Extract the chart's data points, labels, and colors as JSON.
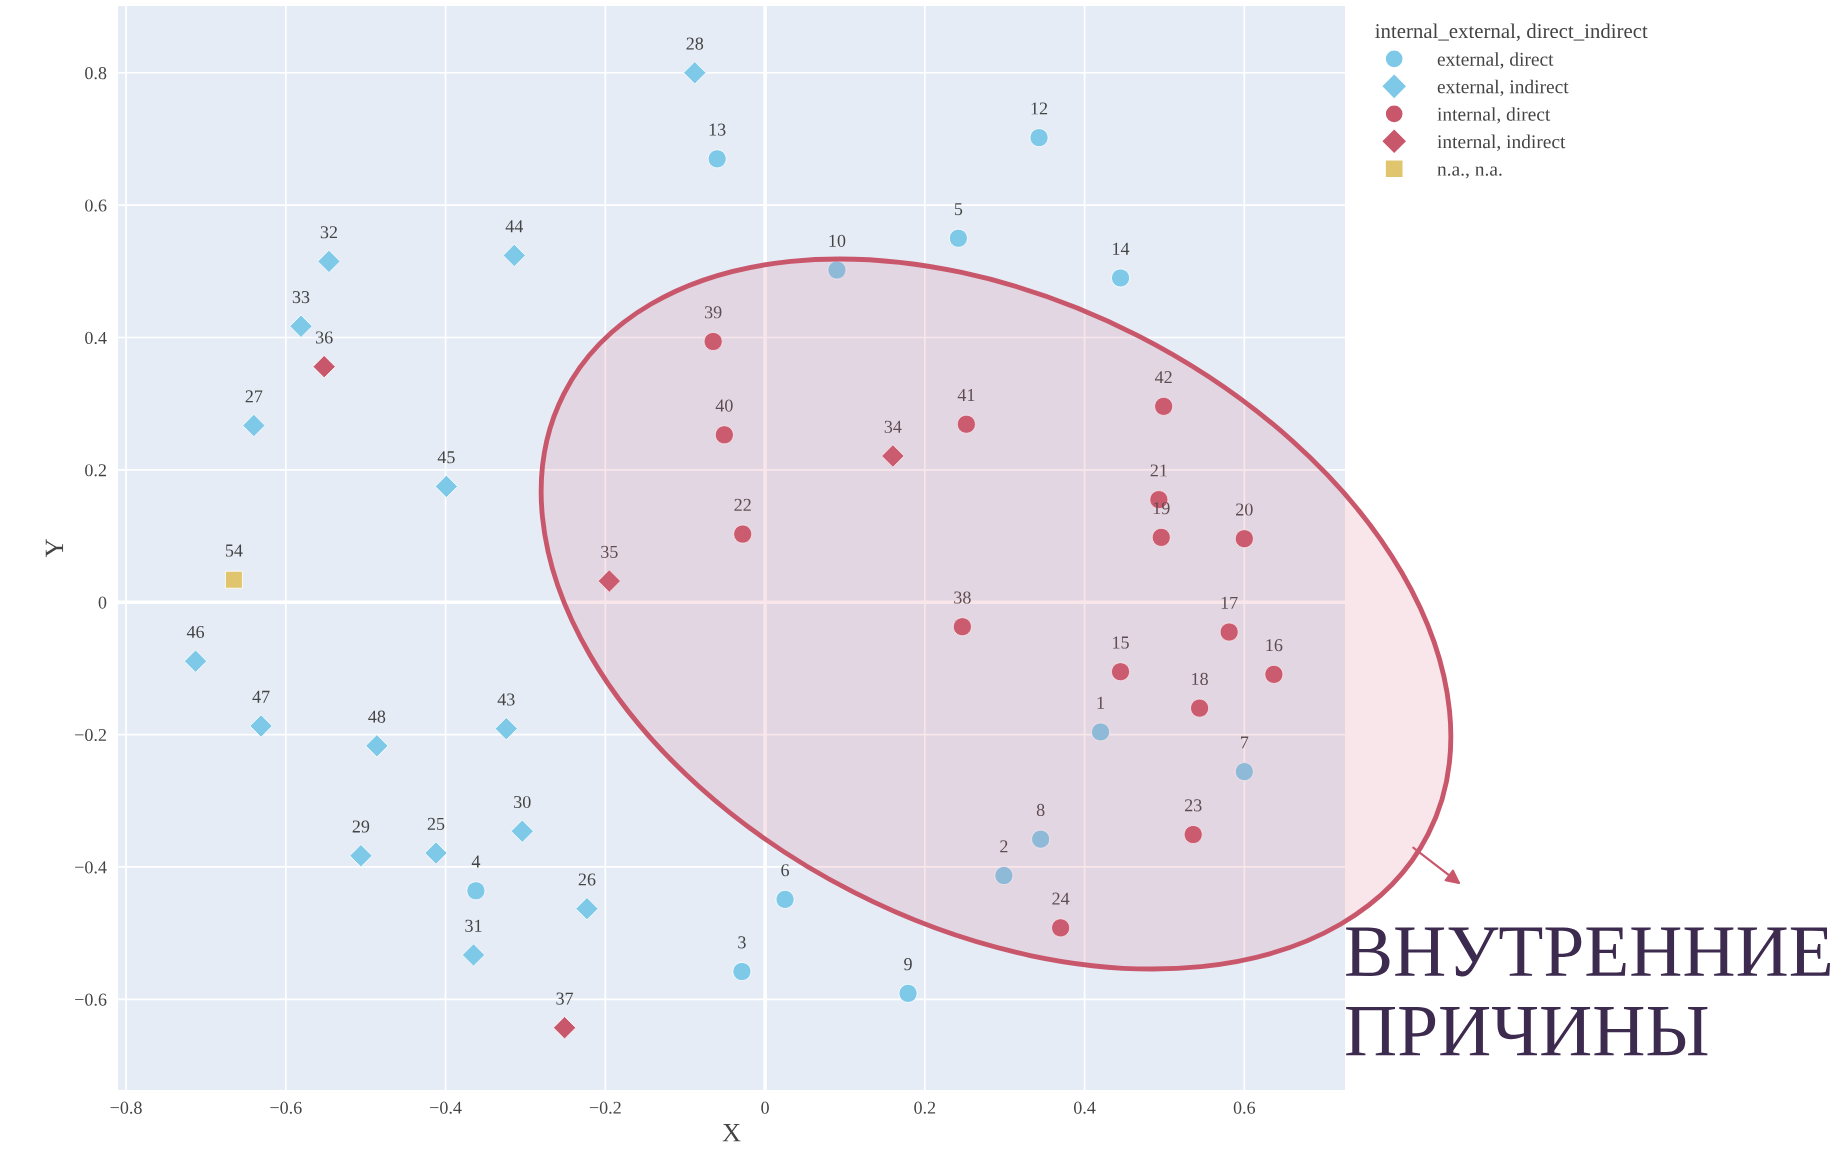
{
  "chart_data": {
    "type": "scatter",
    "xlabel": "X",
    "ylabel": "Y",
    "legend_title": "internal_external, direct_indirect",
    "legend": "top right",
    "grid": true,
    "xlim": [
      -0.81,
      0.726
    ],
    "ylim": [
      -0.737,
      0.901
    ],
    "xticks": [
      {
        "value": -0.8,
        "label": "−0.8"
      },
      {
        "value": -0.6,
        "label": "−0.6"
      },
      {
        "value": -0.4,
        "label": "−0.4"
      },
      {
        "value": -0.2,
        "label": "−0.2"
      },
      0,
      0.2,
      0.4,
      0.6
    ],
    "yticks": [
      {
        "value": -0.6,
        "label": "−0.6"
      },
      {
        "value": -0.4,
        "label": "−0.4"
      },
      {
        "value": -0.2,
        "label": "−0.2"
      },
      0,
      0.2,
      0.4,
      0.6,
      0.8
    ],
    "series": [
      {
        "name": "external, direct",
        "color": "#7ec8e8",
        "marker": "circle",
        "x": [
          0.42,
          0.299,
          -0.029,
          -0.362,
          0.242,
          0.025,
          0.6,
          0.345,
          0.179,
          0.09,
          0.343,
          -0.06,
          0.445
        ],
        "values": [
          -0.196,
          -0.413,
          -0.558,
          -0.436,
          0.55,
          -0.449,
          -0.256,
          -0.358,
          -0.591,
          0.502,
          0.702,
          0.67,
          0.49
        ]
      },
      {
        "name": "external, indirect",
        "color": "#7ec8e8",
        "marker": "diamond",
        "x": [
          -0.412,
          -0.223,
          -0.64,
          -0.088,
          -0.506,
          -0.304,
          -0.365,
          -0.546,
          -0.581,
          -0.324,
          -0.314,
          -0.399,
          -0.713,
          -0.631,
          -0.486
        ],
        "values": [
          -0.379,
          -0.463,
          0.267,
          0.8,
          -0.383,
          -0.346,
          -0.533,
          0.515,
          0.417,
          -0.191,
          0.524,
          0.175,
          -0.089,
          -0.187,
          -0.217
        ]
      },
      {
        "name": "internal, direct",
        "color": "#c9576b",
        "marker": "circle",
        "x": [
          0.445,
          0.637,
          0.581,
          0.544,
          0.496,
          0.6,
          0.493,
          -0.028,
          0.536,
          0.37,
          0.247,
          -0.065,
          -0.051,
          0.252,
          0.499
        ],
        "values": [
          -0.105,
          -0.109,
          -0.045,
          -0.16,
          0.098,
          0.096,
          0.155,
          0.103,
          -0.351,
          -0.492,
          -0.037,
          0.394,
          0.253,
          0.269,
          0.296
        ]
      },
      {
        "name": "internal, indirect",
        "color": "#c9576b",
        "marker": "diamond",
        "x": [
          0.16,
          -0.195,
          -0.552,
          -0.251
        ],
        "values": [
          0.221,
          0.032,
          0.356,
          -0.643
        ]
      },
      {
        "name": "n.a., n.a.",
        "color": "#e0c56e",
        "marker": "square",
        "x": [
          -0.665
        ],
        "values": [
          0.034
        ]
      }
    ],
    "annotations": [
      {
        "text": "1",
        "x": 0.42,
        "y": -0.196
      },
      {
        "text": "2",
        "x": 0.299,
        "y": -0.413
      },
      {
        "text": "3",
        "x": -0.029,
        "y": -0.558
      },
      {
        "text": "4",
        "x": -0.362,
        "y": -0.436
      },
      {
        "text": "5",
        "x": 0.242,
        "y": 0.55
      },
      {
        "text": "6",
        "x": 0.025,
        "y": -0.449
      },
      {
        "text": "7",
        "x": 0.6,
        "y": -0.256
      },
      {
        "text": "8",
        "x": 0.345,
        "y": -0.358
      },
      {
        "text": "9",
        "x": 0.179,
        "y": -0.591
      },
      {
        "text": "10",
        "x": 0.09,
        "y": 0.502
      },
      {
        "text": "12",
        "x": 0.343,
        "y": 0.702
      },
      {
        "text": "13",
        "x": -0.06,
        "y": 0.67
      },
      {
        "text": "14",
        "x": 0.445,
        "y": 0.49
      },
      {
        "text": "25",
        "x": -0.412,
        "y": -0.379
      },
      {
        "text": "26",
        "x": -0.223,
        "y": -0.463
      },
      {
        "text": "27",
        "x": -0.64,
        "y": 0.267
      },
      {
        "text": "28",
        "x": -0.088,
        "y": 0.8
      },
      {
        "text": "29",
        "x": -0.506,
        "y": -0.383
      },
      {
        "text": "30",
        "x": -0.304,
        "y": -0.346
      },
      {
        "text": "31",
        "x": -0.365,
        "y": -0.533
      },
      {
        "text": "32",
        "x": -0.546,
        "y": 0.515
      },
      {
        "text": "33",
        "x": -0.581,
        "y": 0.417
      },
      {
        "text": "43",
        "x": -0.324,
        "y": -0.191
      },
      {
        "text": "44",
        "x": -0.314,
        "y": 0.524
      },
      {
        "text": "45",
        "x": -0.399,
        "y": 0.175
      },
      {
        "text": "46",
        "x": -0.713,
        "y": -0.089
      },
      {
        "text": "47",
        "x": -0.631,
        "y": -0.187
      },
      {
        "text": "48",
        "x": -0.486,
        "y": -0.217
      },
      {
        "text": "15",
        "x": 0.445,
        "y": -0.105
      },
      {
        "text": "16",
        "x": 0.637,
        "y": -0.109
      },
      {
        "text": "17",
        "x": 0.581,
        "y": -0.045
      },
      {
        "text": "18",
        "x": 0.544,
        "y": -0.16
      },
      {
        "text": "19",
        "x": 0.496,
        "y": 0.098
      },
      {
        "text": "20",
        "x": 0.6,
        "y": 0.096
      },
      {
        "text": "21",
        "x": 0.493,
        "y": 0.155
      },
      {
        "text": "22",
        "x": -0.028,
        "y": 0.103
      },
      {
        "text": "23",
        "x": 0.536,
        "y": -0.351
      },
      {
        "text": "24",
        "x": 0.37,
        "y": -0.492
      },
      {
        "text": "38",
        "x": 0.247,
        "y": -0.037
      },
      {
        "text": "39",
        "x": -0.065,
        "y": 0.394
      },
      {
        "text": "40",
        "x": -0.051,
        "y": 0.253
      },
      {
        "text": "41",
        "x": 0.252,
        "y": 0.269
      },
      {
        "text": "42",
        "x": 0.499,
        "y": 0.296
      },
      {
        "text": "34",
        "x": 0.16,
        "y": 0.221
      },
      {
        "text": "35",
        "x": -0.195,
        "y": 0.032
      },
      {
        "text": "36",
        "x": -0.552,
        "y": 0.356
      },
      {
        "text": "37",
        "x": -0.251,
        "y": -0.643
      },
      {
        "text": "54",
        "x": -0.665,
        "y": 0.034
      },
      "ВНУТРЕННИЕ\nПРИЧИНЫ"
    ]
  }
}
